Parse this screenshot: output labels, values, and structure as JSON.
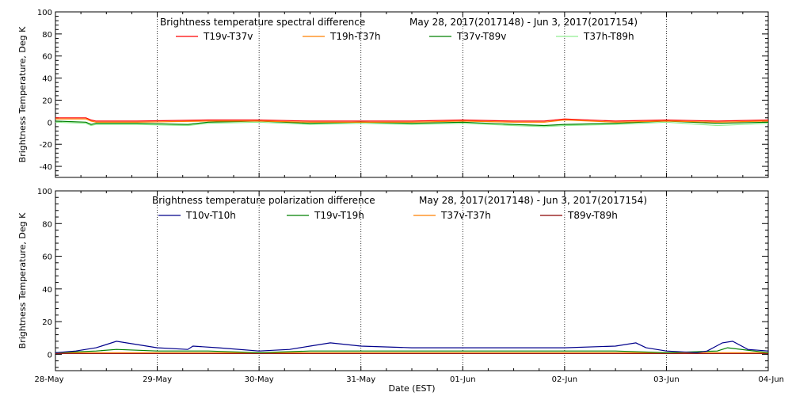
{
  "chart_data": [
    {
      "type": "line",
      "title": "Brightness temperature spectral difference",
      "date_range": "May 28, 2017(2017148) - Jun  3, 2017(2017154)",
      "ylabel": "Brightness Temperature, Deg K",
      "xlabel": "",
      "x_range": [
        0,
        7
      ],
      "ylim": [
        -50,
        100
      ],
      "yticks": [
        -40,
        -20,
        0,
        20,
        40,
        60,
        80,
        100
      ],
      "grid": "vertical dotted at day boundaries",
      "legend_placement": "top",
      "series": [
        {
          "name": "T19v-T37v",
          "color": "#ff0000",
          "x": [
            0,
            0.3,
            0.35,
            0.4,
            0.8,
            1.5,
            2.0,
            2.5,
            3.0,
            3.5,
            4.0,
            4.5,
            4.8,
            5.0,
            5.5,
            6.0,
            6.5,
            7.0
          ],
          "y": [
            4,
            4,
            2,
            1,
            1,
            2,
            2,
            1,
            1,
            1,
            2,
            1,
            1,
            3,
            1,
            2,
            1,
            2
          ]
        },
        {
          "name": "T19h-T37h",
          "color": "#ff8000",
          "x": [
            0,
            0.3,
            0.35,
            0.4,
            0.8,
            1.5,
            2.0,
            2.5,
            3.0,
            3.5,
            4.0,
            4.5,
            4.8,
            5.0,
            5.5,
            6.0,
            6.5,
            7.0
          ],
          "y": [
            3,
            3,
            1,
            0,
            0,
            1,
            1,
            0,
            0,
            0,
            1,
            0,
            0,
            2,
            0,
            1,
            0,
            1
          ]
        },
        {
          "name": "T37v-T89v",
          "color": "#008000",
          "x": [
            0,
            0.3,
            0.35,
            0.4,
            0.8,
            1.3,
            1.5,
            2.0,
            2.5,
            3.0,
            3.5,
            4.0,
            4.5,
            4.8,
            5.0,
            5.5,
            6.0,
            6.5,
            7.0
          ],
          "y": [
            1,
            0,
            -2,
            -1,
            -1,
            -2,
            0,
            1,
            -1,
            0,
            -1,
            0,
            -2,
            -3,
            -2,
            -1,
            1,
            -1,
            0
          ]
        },
        {
          "name": "T37h-T89h",
          "color": "#90ee90",
          "x": [
            0,
            0.3,
            0.35,
            0.4,
            0.8,
            1.3,
            1.5,
            2.0,
            2.5,
            3.0,
            3.5,
            4.0,
            4.5,
            4.8,
            5.0,
            5.5,
            6.0,
            6.5,
            7.0
          ],
          "y": [
            0,
            -1,
            -3,
            -2,
            -2,
            -3,
            -1,
            0,
            -2,
            -1,
            -2,
            -1,
            -3,
            -4,
            -3,
            -2,
            0,
            -3,
            -1
          ]
        }
      ]
    },
    {
      "type": "line",
      "title": "Brightness temperature polarization difference",
      "date_range": "May 28, 2017(2017148) - Jun  3, 2017(2017154)",
      "ylabel": "Brightness Temperature, Deg K",
      "xlabel": "Date (EST)",
      "x_range": [
        0,
        7
      ],
      "ylim": [
        -10,
        100
      ],
      "yticks": [
        0,
        20,
        40,
        60,
        80,
        100
      ],
      "grid": "vertical dotted at day boundaries",
      "legend_placement": "top",
      "series": [
        {
          "name": "T10v-T10h",
          "color": "#00008b",
          "x": [
            0,
            0.2,
            0.4,
            0.6,
            0.8,
            1.0,
            1.3,
            1.35,
            1.6,
            2.0,
            2.3,
            2.5,
            2.7,
            3.0,
            3.5,
            4.0,
            4.5,
            5.0,
            5.5,
            5.7,
            5.8,
            6.0,
            6.3,
            6.4,
            6.55,
            6.65,
            6.8,
            7.0
          ],
          "y": [
            1,
            2,
            4,
            8,
            6,
            4,
            3,
            5,
            4,
            2,
            3,
            5,
            7,
            5,
            4,
            4,
            4,
            4,
            5,
            7,
            4,
            2,
            1,
            2,
            7,
            8,
            3,
            2
          ]
        },
        {
          "name": "T19v-T19h",
          "color": "#008000",
          "x": [
            0,
            0.4,
            0.6,
            1.0,
            1.5,
            2.0,
            2.5,
            3.0,
            3.5,
            4.0,
            4.5,
            5.0,
            5.5,
            6.0,
            6.5,
            6.6,
            7.0
          ],
          "y": [
            1,
            2,
            3,
            2,
            2,
            1,
            2,
            2,
            2,
            2,
            2,
            2,
            2,
            1,
            2,
            4,
            1
          ]
        },
        {
          "name": "T37v-T37h",
          "color": "#ff8000",
          "x": [
            0,
            1.0,
            2.0,
            3.0,
            4.0,
            5.0,
            6.0,
            7.0
          ],
          "y": [
            1,
            1,
            1,
            1,
            1,
            1,
            1,
            1
          ]
        },
        {
          "name": "T89v-T89h",
          "color": "#8b0000",
          "x": [
            0,
            1.0,
            2.0,
            3.0,
            4.0,
            5.0,
            6.0,
            7.0
          ],
          "y": [
            0.5,
            0.5,
            0.5,
            0.5,
            0.5,
            0.5,
            0.5,
            0.5
          ]
        }
      ]
    }
  ],
  "x_tick_labels": [
    "28-May",
    "29-May",
    "30-May",
    "31-May",
    "01-Jun",
    "02-Jun",
    "03-Jun",
    "04-Jun"
  ]
}
